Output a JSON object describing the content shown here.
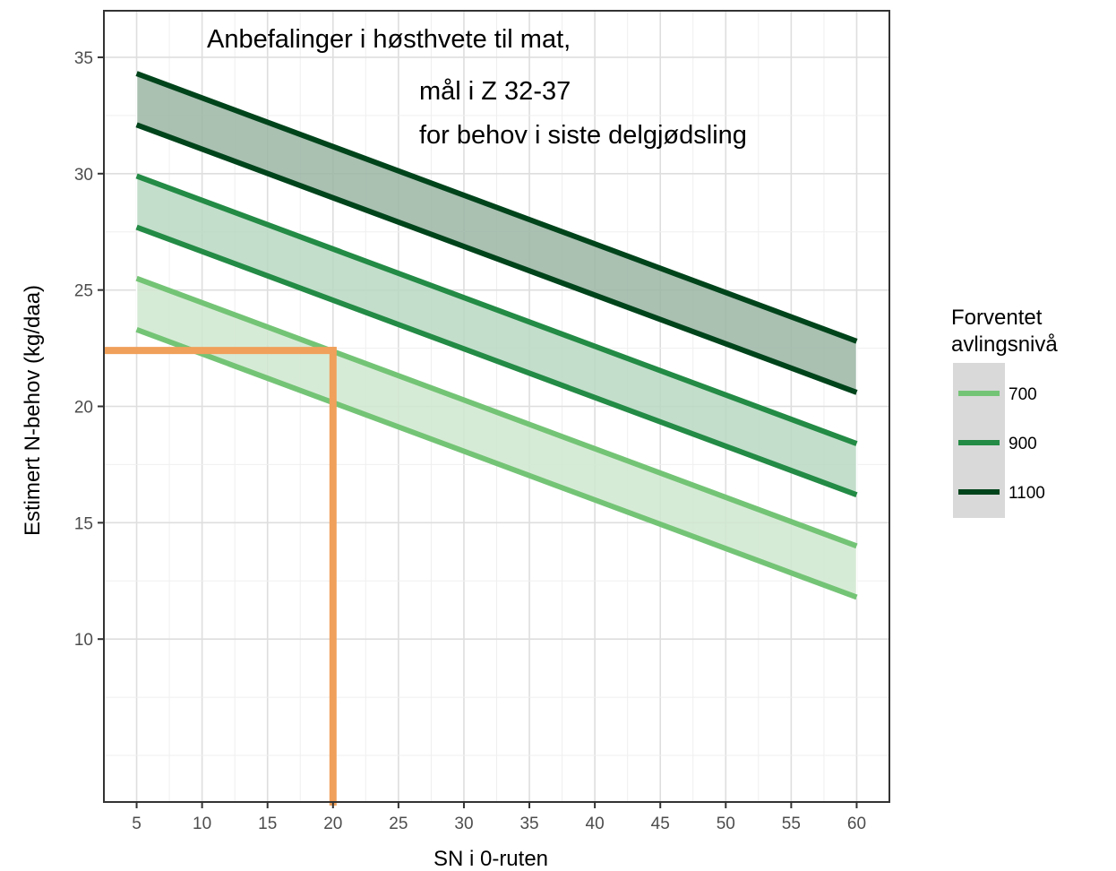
{
  "chart_data": {
    "type": "line",
    "title": "",
    "annotation_lines": [
      "Anbefalinger i  høsthvete til mat,",
      "mål i Z 32-37",
      "for behov i siste delgjødsling"
    ],
    "xlabel": "SN i 0-ruten",
    "ylabel": "Estimert N-behov (kg/daa)",
    "xlim": [
      2.5,
      62.5
    ],
    "ylim": [
      3,
      37
    ],
    "x_ticks": [
      5,
      10,
      15,
      20,
      25,
      30,
      35,
      40,
      45,
      50,
      55,
      60
    ],
    "y_ticks": [
      10,
      15,
      20,
      25,
      30,
      35
    ],
    "grid": true,
    "legend": {
      "title_lines": [
        "Forventet",
        "avlingsnivå"
      ],
      "placement": "right",
      "entries": [
        "700",
        "900",
        "1100"
      ]
    },
    "series": [
      {
        "name": "700",
        "color": "#74c476",
        "fill": "#cfe8cf",
        "x": [
          5,
          60
        ],
        "upper": [
          25.5,
          14.0
        ],
        "lower": [
          23.3,
          11.8
        ]
      },
      {
        "name": "900",
        "color": "#238b45",
        "fill": "#b9d8c2",
        "x": [
          5,
          60
        ],
        "upper": [
          29.9,
          18.4
        ],
        "lower": [
          27.7,
          16.2
        ]
      },
      {
        "name": "1100",
        "color": "#00441b",
        "fill": "#9bb5a3",
        "x": [
          5,
          60
        ],
        "upper": [
          34.3,
          22.8
        ],
        "lower": [
          32.1,
          20.6
        ]
      }
    ],
    "reference_lines": {
      "color": "#f0a05a",
      "x": 20,
      "y": 22.4
    }
  }
}
